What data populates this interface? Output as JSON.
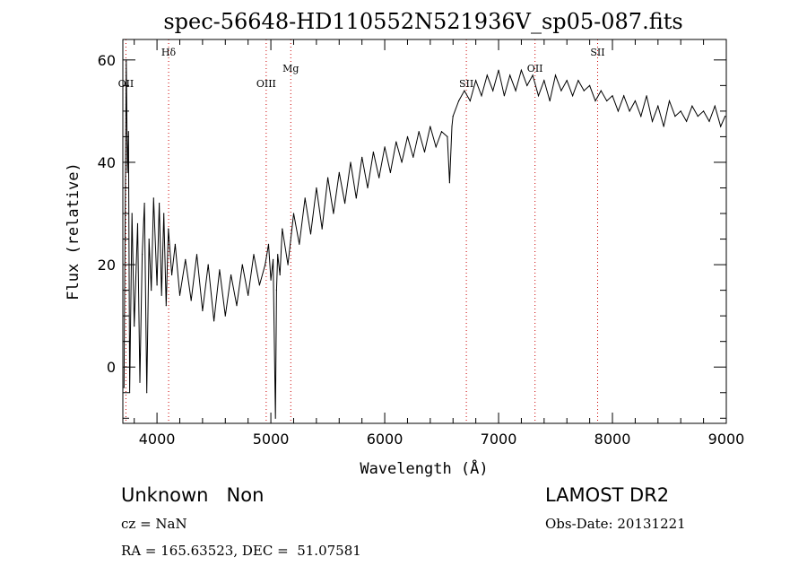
{
  "chart_data": {
    "type": "line",
    "title": "spec-56648-HD110552N521936V_sp05-087.fits",
    "xlabel": "Wavelength (Å)",
    "ylabel": "Flux (relative)",
    "xlim": [
      3700,
      9000
    ],
    "ylim": [
      -11,
      64
    ],
    "x_ticks": [
      4000,
      5000,
      6000,
      7000,
      8000,
      9000
    ],
    "y_ticks": [
      0,
      20,
      40,
      60
    ],
    "grid": false,
    "line_color": "#000000",
    "marker_color": "#cc0000",
    "series": [
      {
        "x": [
          3710,
          3730,
          3740,
          3750,
          3760,
          3780,
          3800,
          3830,
          3850,
          3870,
          3890,
          3910,
          3930,
          3950,
          3970,
          4000,
          4020,
          4040,
          4060,
          4080,
          4100,
          4130,
          4160,
          4200,
          4250,
          4300,
          4350,
          4400,
          4450,
          4500,
          4550,
          4600,
          4650,
          4700,
          4750,
          4800,
          4850,
          4900,
          4950,
          4980,
          5000,
          5020,
          5040,
          5050,
          5060,
          5080,
          5100,
          5150,
          5200,
          5250,
          5300,
          5350,
          5400,
          5450,
          5500,
          5550,
          5600,
          5650,
          5700,
          5750,
          5800,
          5850,
          5900,
          5950,
          6000,
          6050,
          6100,
          6150,
          6200,
          6250,
          6300,
          6350,
          6400,
          6450,
          6500,
          6550,
          6570,
          6590,
          6600,
          6650,
          6700,
          6750,
          6800,
          6850,
          6900,
          6950,
          7000,
          7050,
          7100,
          7150,
          7200,
          7250,
          7300,
          7350,
          7400,
          7450,
          7500,
          7550,
          7600,
          7650,
          7700,
          7750,
          7800,
          7850,
          7900,
          7950,
          8000,
          8050,
          8100,
          8150,
          8200,
          8250,
          8300,
          8350,
          8400,
          8450,
          8500,
          8550,
          8600,
          8650,
          8700,
          8750,
          8800,
          8850,
          8900,
          8950,
          8990
        ],
        "y": [
          -4,
          60,
          38,
          46,
          -5,
          30,
          8,
          28,
          -3,
          22,
          32,
          -5,
          25,
          15,
          33,
          16,
          32,
          14,
          30,
          12,
          27,
          18,
          24,
          14,
          21,
          13,
          22,
          11,
          20,
          9,
          19,
          10,
          18,
          12,
          20,
          14,
          22,
          16,
          20,
          24,
          17,
          21,
          -10,
          15,
          22,
          18,
          27,
          20,
          30,
          24,
          33,
          26,
          35,
          27,
          37,
          30,
          38,
          32,
          40,
          33,
          41,
          35,
          42,
          37,
          43,
          38,
          44,
          40,
          45,
          41,
          46,
          42,
          47,
          43,
          46,
          45,
          36,
          47,
          49,
          52,
          54,
          52,
          56,
          53,
          57,
          54,
          58,
          53,
          57,
          54,
          58,
          55,
          57,
          53,
          56,
          52,
          57,
          54,
          56,
          53,
          56,
          54,
          55,
          52,
          54,
          52,
          53,
          50,
          53,
          50,
          52,
          49,
          53,
          48,
          51,
          47,
          52,
          49,
          50,
          48,
          51,
          49,
          50,
          48,
          51,
          47,
          49
        ]
      }
    ],
    "line_markers": [
      {
        "label": "OII",
        "x": 3727,
        "row": "low"
      },
      {
        "label": "Hδ",
        "x": 4102,
        "row": "high"
      },
      {
        "label": "OIII",
        "x": 4959,
        "row": "low"
      },
      {
        "label": "Mg",
        "x": 5175,
        "row": "mid"
      },
      {
        "label": "SII",
        "x": 6717,
        "row": "low"
      },
      {
        "label": "OII",
        "x": 7320,
        "row": "mid"
      },
      {
        "label": "SII",
        "x": 7870,
        "row": "high"
      }
    ]
  },
  "info": {
    "class_text": "Unknown   Non",
    "survey": "LAMOST DR2",
    "cz": "cz = NaN",
    "obs_date": "Obs-Date: 20131221",
    "coords": "RA = 165.63523, DEC =  51.07581"
  }
}
